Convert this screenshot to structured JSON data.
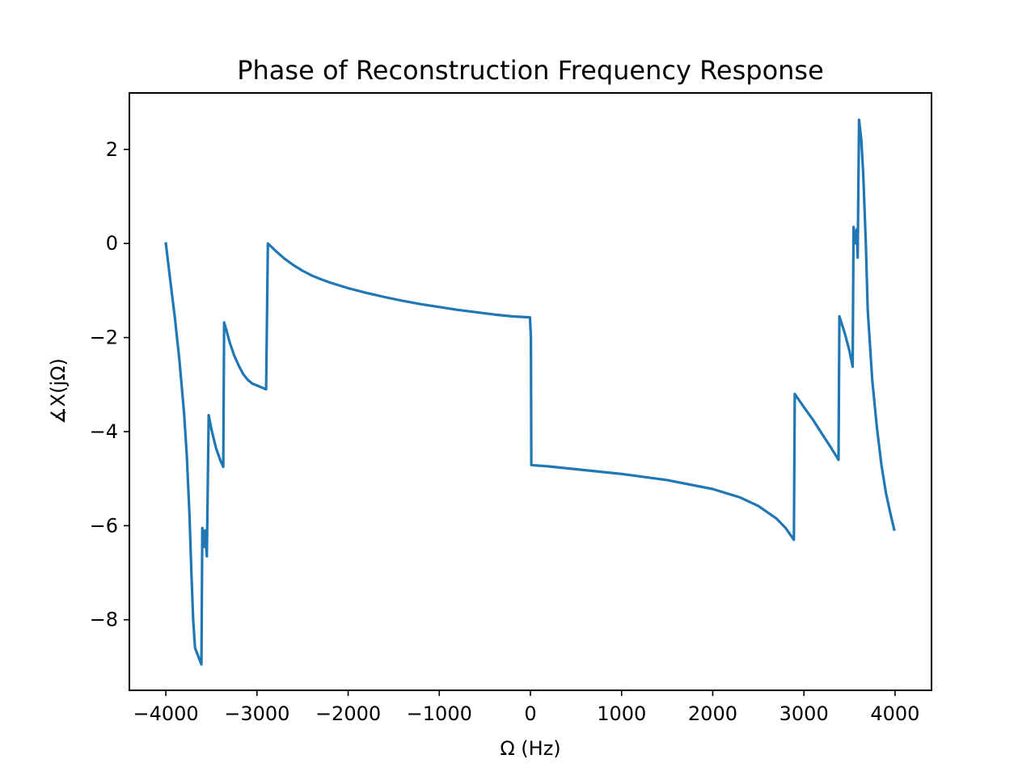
{
  "chart_data": {
    "type": "line",
    "title": "Phase of Reconstruction Frequency Response",
    "xlabel": "Ω (Hz)",
    "ylabel": "∡X(jΩ)",
    "xlim": [
      -4400,
      4400
    ],
    "ylim": [
      -9.5,
      3.2
    ],
    "xticks": [
      -4000,
      -3000,
      -2000,
      -1000,
      0,
      1000,
      2000,
      3000,
      4000
    ],
    "yticks": [
      2,
      0,
      -2,
      -4,
      -6,
      -8
    ],
    "xtick_labels": [
      "−4000",
      "−3000",
      "−2000",
      "−1000",
      "0",
      "1000",
      "2000",
      "3000",
      "4000"
    ],
    "ytick_labels": [
      "2",
      "0",
      "−2",
      "−4",
      "−6",
      "−8"
    ],
    "grid": false,
    "color": "#1f77b4",
    "series": [
      {
        "points": [
          [
            -4000,
            0.0
          ],
          [
            -3950,
            -0.8
          ],
          [
            -3900,
            -1.6
          ],
          [
            -3850,
            -2.5
          ],
          [
            -3800,
            -3.6
          ],
          [
            -3770,
            -4.5
          ],
          [
            -3740,
            -5.8
          ],
          [
            -3720,
            -7.0
          ],
          [
            -3700,
            -8.0
          ],
          [
            -3680,
            -8.6
          ],
          [
            -3610,
            -8.95
          ],
          [
            -3600,
            -6.05
          ],
          [
            -3580,
            -6.45
          ],
          [
            -3570,
            -6.1
          ],
          [
            -3550,
            -6.65
          ],
          [
            -3530,
            -3.65
          ],
          [
            -3500,
            -3.95
          ],
          [
            -3450,
            -4.35
          ],
          [
            -3400,
            -4.62
          ],
          [
            -3370,
            -4.75
          ],
          [
            -3360,
            -1.68
          ],
          [
            -3330,
            -1.88
          ],
          [
            -3300,
            -2.1
          ],
          [
            -3250,
            -2.38
          ],
          [
            -3200,
            -2.6
          ],
          [
            -3150,
            -2.78
          ],
          [
            -3100,
            -2.9
          ],
          [
            -3050,
            -2.98
          ],
          [
            -3000,
            -3.02
          ],
          [
            -2900,
            -3.1
          ],
          [
            -2880,
            0.0
          ],
          [
            -2800,
            -0.15
          ],
          [
            -2700,
            -0.32
          ],
          [
            -2600,
            -0.46
          ],
          [
            -2500,
            -0.58
          ],
          [
            -2400,
            -0.68
          ],
          [
            -2300,
            -0.76
          ],
          [
            -2200,
            -0.83
          ],
          [
            -2100,
            -0.89
          ],
          [
            -2000,
            -0.95
          ],
          [
            -1800,
            -1.05
          ],
          [
            -1600,
            -1.14
          ],
          [
            -1400,
            -1.22
          ],
          [
            -1200,
            -1.29
          ],
          [
            -1000,
            -1.35
          ],
          [
            -800,
            -1.41
          ],
          [
            -600,
            -1.46
          ],
          [
            -400,
            -1.51
          ],
          [
            -200,
            -1.55
          ],
          [
            -5,
            -1.57
          ],
          [
            5,
            -2.0
          ],
          [
            10,
            -4.71
          ],
          [
            200,
            -4.74
          ],
          [
            500,
            -4.8
          ],
          [
            1000,
            -4.9
          ],
          [
            1500,
            -5.03
          ],
          [
            2000,
            -5.22
          ],
          [
            2300,
            -5.4
          ],
          [
            2500,
            -5.58
          ],
          [
            2700,
            -5.85
          ],
          [
            2800,
            -6.05
          ],
          [
            2890,
            -6.3
          ],
          [
            2900,
            -3.2
          ],
          [
            3000,
            -3.48
          ],
          [
            3100,
            -3.75
          ],
          [
            3200,
            -4.05
          ],
          [
            3300,
            -4.35
          ],
          [
            3380,
            -4.6
          ],
          [
            3390,
            -1.55
          ],
          [
            3450,
            -1.92
          ],
          [
            3500,
            -2.28
          ],
          [
            3535,
            -2.62
          ],
          [
            3545,
            0.35
          ],
          [
            3570,
            0.0
          ],
          [
            3580,
            0.3
          ],
          [
            3590,
            -0.3
          ],
          [
            3605,
            2.63
          ],
          [
            3630,
            2.2
          ],
          [
            3650,
            1.5
          ],
          [
            3680,
            0.0
          ],
          [
            3700,
            -1.4
          ],
          [
            3750,
            -2.9
          ],
          [
            3800,
            -3.9
          ],
          [
            3850,
            -4.7
          ],
          [
            3900,
            -5.3
          ],
          [
            3950,
            -5.75
          ],
          [
            3990,
            -6.08
          ]
        ]
      }
    ]
  }
}
